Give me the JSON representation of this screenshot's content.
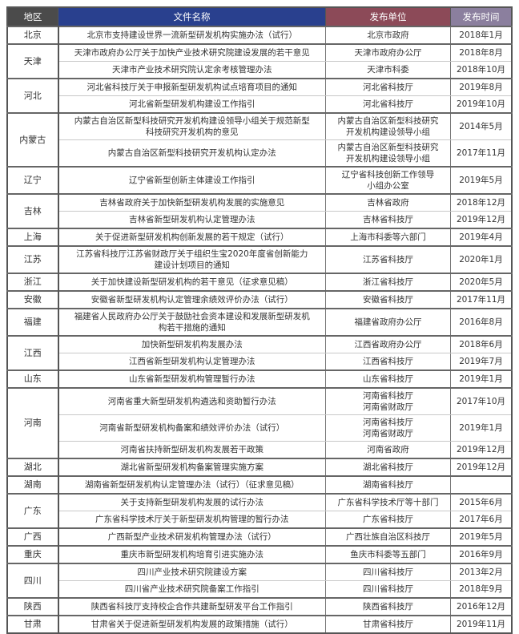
{
  "table": {
    "headers": [
      "地区",
      "文件名称",
      "发布单位",
      "发布时间"
    ],
    "header_colors": [
      "#4b4b4b",
      "#29408e",
      "#8c4a58",
      "#8b7f9e"
    ],
    "groups": [
      {
        "region": "北京",
        "items": [
          {
            "title": "北京市支持建设世界一流新型研发机构实施办法（试行）",
            "issuer": "北京市政府",
            "date": "2018年1月"
          }
        ]
      },
      {
        "region": "天津",
        "items": [
          {
            "title": "天津市政府办公厅关于加快产业技术研究院建设发展的若干意见",
            "issuer": "天津市政府办公厅",
            "date": "2018年8月"
          },
          {
            "title": "天津市产业技术研究院认定余考核管理办法",
            "issuer": "天津市科委",
            "date": "2018年10月"
          }
        ]
      },
      {
        "region": "河北",
        "items": [
          {
            "title": "河北省科技厅关于申报新型研发机构试点培育项目的通知",
            "issuer": "河北省科技厅",
            "date": "2019年8月"
          },
          {
            "title": "河北省新型研发机构建设工作指引",
            "issuer": "河北省科技厅",
            "date": "2019年10月"
          }
        ]
      },
      {
        "region": "内蒙古",
        "items": [
          {
            "title": "内蒙古自治区新型科技研究开发机构建设领导小组关于规范新型\n科技研究开发机构的意见",
            "issuer": "内蒙古自治区新型科技研究\n开发机构建设领导小组",
            "date": "2014年5月"
          },
          {
            "title": "内蒙古自治区新型科技研究开发机构认定办法",
            "issuer": "内蒙古自治区新型科技研究\n开发机构建设领导小组",
            "date": "2017年11月"
          }
        ]
      },
      {
        "region": "辽宁",
        "items": [
          {
            "title": "辽宁省新型创新主体建设工作指引",
            "issuer": "辽宁省科技创新工作领导\n小组办公室",
            "date": "2019年5月"
          }
        ]
      },
      {
        "region": "吉林",
        "items": [
          {
            "title": "吉林省政府关于加快新型研发机构发展的实施意见",
            "issuer": "吉林省政府",
            "date": "2018年12月"
          },
          {
            "title": "吉林省新型研发机构认定管理办法",
            "issuer": "吉林省科技厅",
            "date": "2019年12月"
          }
        ]
      },
      {
        "region": "上海",
        "items": [
          {
            "title": "关于促进新型研发机构创新发展的若干规定（试行）",
            "issuer": "上海市科委等六部门",
            "date": "2019年4月"
          }
        ]
      },
      {
        "region": "江苏",
        "items": [
          {
            "title": "江苏省科技厅江苏省财政厅关于组织生宝2020年度省创新能力\n建设计划项目的通知",
            "issuer": "江苏省科技厅",
            "date": "2020年1月"
          }
        ]
      },
      {
        "region": "浙江",
        "items": [
          {
            "title": "关于加快建设新型研发机构的若干意见（征求意见稿）",
            "issuer": "浙江省科技厅",
            "date": "2020年5月"
          }
        ]
      },
      {
        "region": "安徽",
        "items": [
          {
            "title": "安徽省新型研发机构认定管理余绩效评价办法（试行）",
            "issuer": "安徽省科技厅",
            "date": "2017年11月"
          }
        ]
      },
      {
        "region": "福建",
        "items": [
          {
            "title": "福建省人民政府办公厅关于鼓励社会资本建设和发展新型研发机\n构若干措施的通知",
            "issuer": "福建省政府办公厅",
            "date": "2016年8月"
          }
        ]
      },
      {
        "region": "江西",
        "items": [
          {
            "title": "加快新型研发机构发展办法",
            "issuer": "江西省政府办公厅",
            "date": "2018年6月"
          },
          {
            "title": "江西省新型研发机构认定管理办法",
            "issuer": "江西省科技厅",
            "date": "2019年7月"
          }
        ]
      },
      {
        "region": "山东",
        "items": [
          {
            "title": "山东省新型研发机构管理暂行办法",
            "issuer": "山东省科技厅",
            "date": "2019年1月"
          }
        ]
      },
      {
        "region": "河南",
        "items": [
          {
            "title": "河南省重大新型研发机构遴选和资助暂行办法",
            "issuer": "河南省科技厅\n河南省财政厅",
            "date": "2017年10月"
          },
          {
            "title": "河南省新型研发机构备案和绩效评价办法（试行）",
            "issuer": "河南省科技厅\n河南省财政厅",
            "date": "2019年1月"
          },
          {
            "title": "河南省扶持新型研发机构发展若干政策",
            "issuer": "河南省政府",
            "date": "2019年12月"
          }
        ]
      },
      {
        "region": "湖北",
        "items": [
          {
            "title": "湖北省新型研发机构备案管理实施方案",
            "issuer": "湖北省科技厅",
            "date": "2019年12月"
          }
        ]
      },
      {
        "region": "湖南",
        "items": [
          {
            "title": "湖南省新型研发机构认定管理办法（试行）（征求意见稿）",
            "issuer": "湖南省科技厅",
            "date": ""
          }
        ]
      },
      {
        "region": "广东",
        "items": [
          {
            "title": "关于支持新型研发机构发展的试行办法",
            "issuer": "广东省科学技术厅等十部门",
            "date": "2015年6月"
          },
          {
            "title": "广东省科学技术厅关于新型研发机构管理的暂行办法",
            "issuer": "广东省科技厅",
            "date": "2017年6月"
          }
        ]
      },
      {
        "region": "广西",
        "items": [
          {
            "title": "广西新型产业技术研发机构管理办法（试行）",
            "issuer": "广西壮族自治区科技厅",
            "date": "2019年5月"
          }
        ]
      },
      {
        "region": "重庆",
        "items": [
          {
            "title": "重庆市新型研发机构培育引进实施办法",
            "issuer": "鱼庆市科委等五部门",
            "date": "2016年9月"
          }
        ]
      },
      {
        "region": "四川",
        "items": [
          {
            "title": "四川产业技术研究院建设方案",
            "issuer": "四川省科技厅",
            "date": "2013年2月"
          },
          {
            "title": "四川省产业技术研究院备案工作指引",
            "issuer": "四川省科技厅",
            "date": "2018年9月"
          }
        ]
      },
      {
        "region": "陕西",
        "items": [
          {
            "title": "陕西省科技厅支持校企合作共建新型研发平台工作指引",
            "issuer": "陕西省科技厅",
            "date": "2016年12月"
          }
        ]
      },
      {
        "region": "甘肃",
        "items": [
          {
            "title": "甘肃省关于促进新型研发机构发展的政策措施（试行）",
            "issuer": "甘肃省科技厅",
            "date": "2019年11月"
          }
        ]
      }
    ]
  }
}
